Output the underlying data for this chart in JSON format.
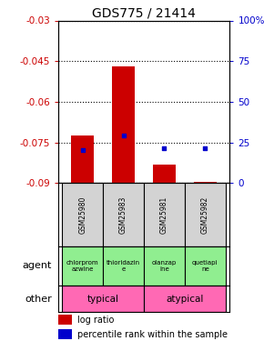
{
  "title": "GDS775 / 21414",
  "samples": [
    "GSM25980",
    "GSM25983",
    "GSM25981",
    "GSM25982"
  ],
  "log_ratios": [
    -0.0725,
    -0.047,
    -0.083,
    -0.0895
  ],
  "bar_bottom": -0.09,
  "percentile_ranks": [
    0.205,
    0.295,
    0.215,
    0.215
  ],
  "ylim": [
    -0.09,
    -0.03
  ],
  "yticks": [
    -0.09,
    -0.075,
    -0.06,
    -0.045,
    -0.03
  ],
  "ytick_labels": [
    "-0.09",
    "-0.075",
    "-0.06",
    "-0.045",
    "-0.03"
  ],
  "right_yticks": [
    0.0,
    0.25,
    0.5,
    0.75,
    1.0
  ],
  "right_ytick_labels": [
    "0",
    "25",
    "50",
    "75",
    "100%"
  ],
  "agents": [
    "chlorprom\nazwine",
    "thioridazin\ne",
    "olanzap\nine",
    "quetiapi\nne"
  ],
  "agent_bg": "#90EE90",
  "other_bg": "#FF69B4",
  "sample_bg": "#d3d3d3",
  "bar_color": "#CC0000",
  "dot_color": "#0000CC",
  "left_axis_color": "#CC0000",
  "right_axis_color": "#0000CC",
  "title_fontsize": 10,
  "tick_fontsize": 7.5,
  "legend_fontsize": 7,
  "bar_width": 0.55
}
